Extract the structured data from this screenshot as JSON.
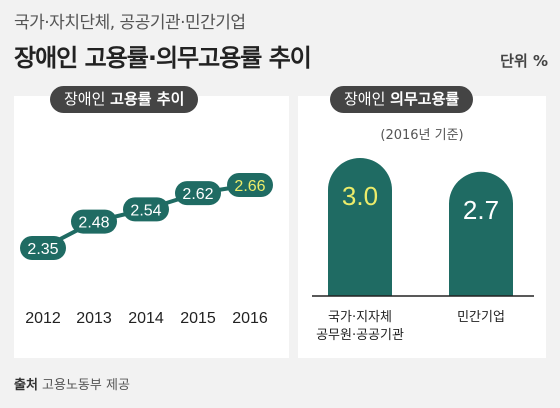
{
  "header": {
    "subtitle": "국가·자치단체, 공공기관·민간기업",
    "title": "장애인 고용률·의무고용률 추이",
    "unit": "단위 %"
  },
  "left_panel": {
    "title_plain": "장애인 ",
    "title_bold": "고용률 추이"
  },
  "right_panel": {
    "title_plain": "장애인 ",
    "title_bold": "의무고용률",
    "basis": "(2016년 기준)"
  },
  "source": {
    "label": "출처",
    "text": " 고용노동부 제공"
  },
  "colors": {
    "teal": "#1f6b63",
    "highlight": "#ecec6a",
    "pill": "#444444",
    "background": "#f2f2f2"
  },
  "chart_data": [
    {
      "type": "line",
      "title": "장애인 고용률 추이",
      "x": [
        "2012",
        "2013",
        "2014",
        "2015",
        "2016"
      ],
      "values": [
        2.35,
        2.48,
        2.54,
        2.62,
        2.66
      ],
      "labels": [
        "2.35",
        "2.48",
        "2.54",
        "2.62",
        "2.66"
      ],
      "highlight_last": true,
      "grid": false
    },
    {
      "type": "bar",
      "title": "장애인 의무고용률",
      "categories": [
        [
          "국가·지자체",
          "공무원·공공기관"
        ],
        [
          "민간기업"
        ]
      ],
      "values": [
        3.0,
        2.7
      ],
      "labels": [
        "3.0",
        "2.7"
      ],
      "highlight_first": true
    }
  ]
}
